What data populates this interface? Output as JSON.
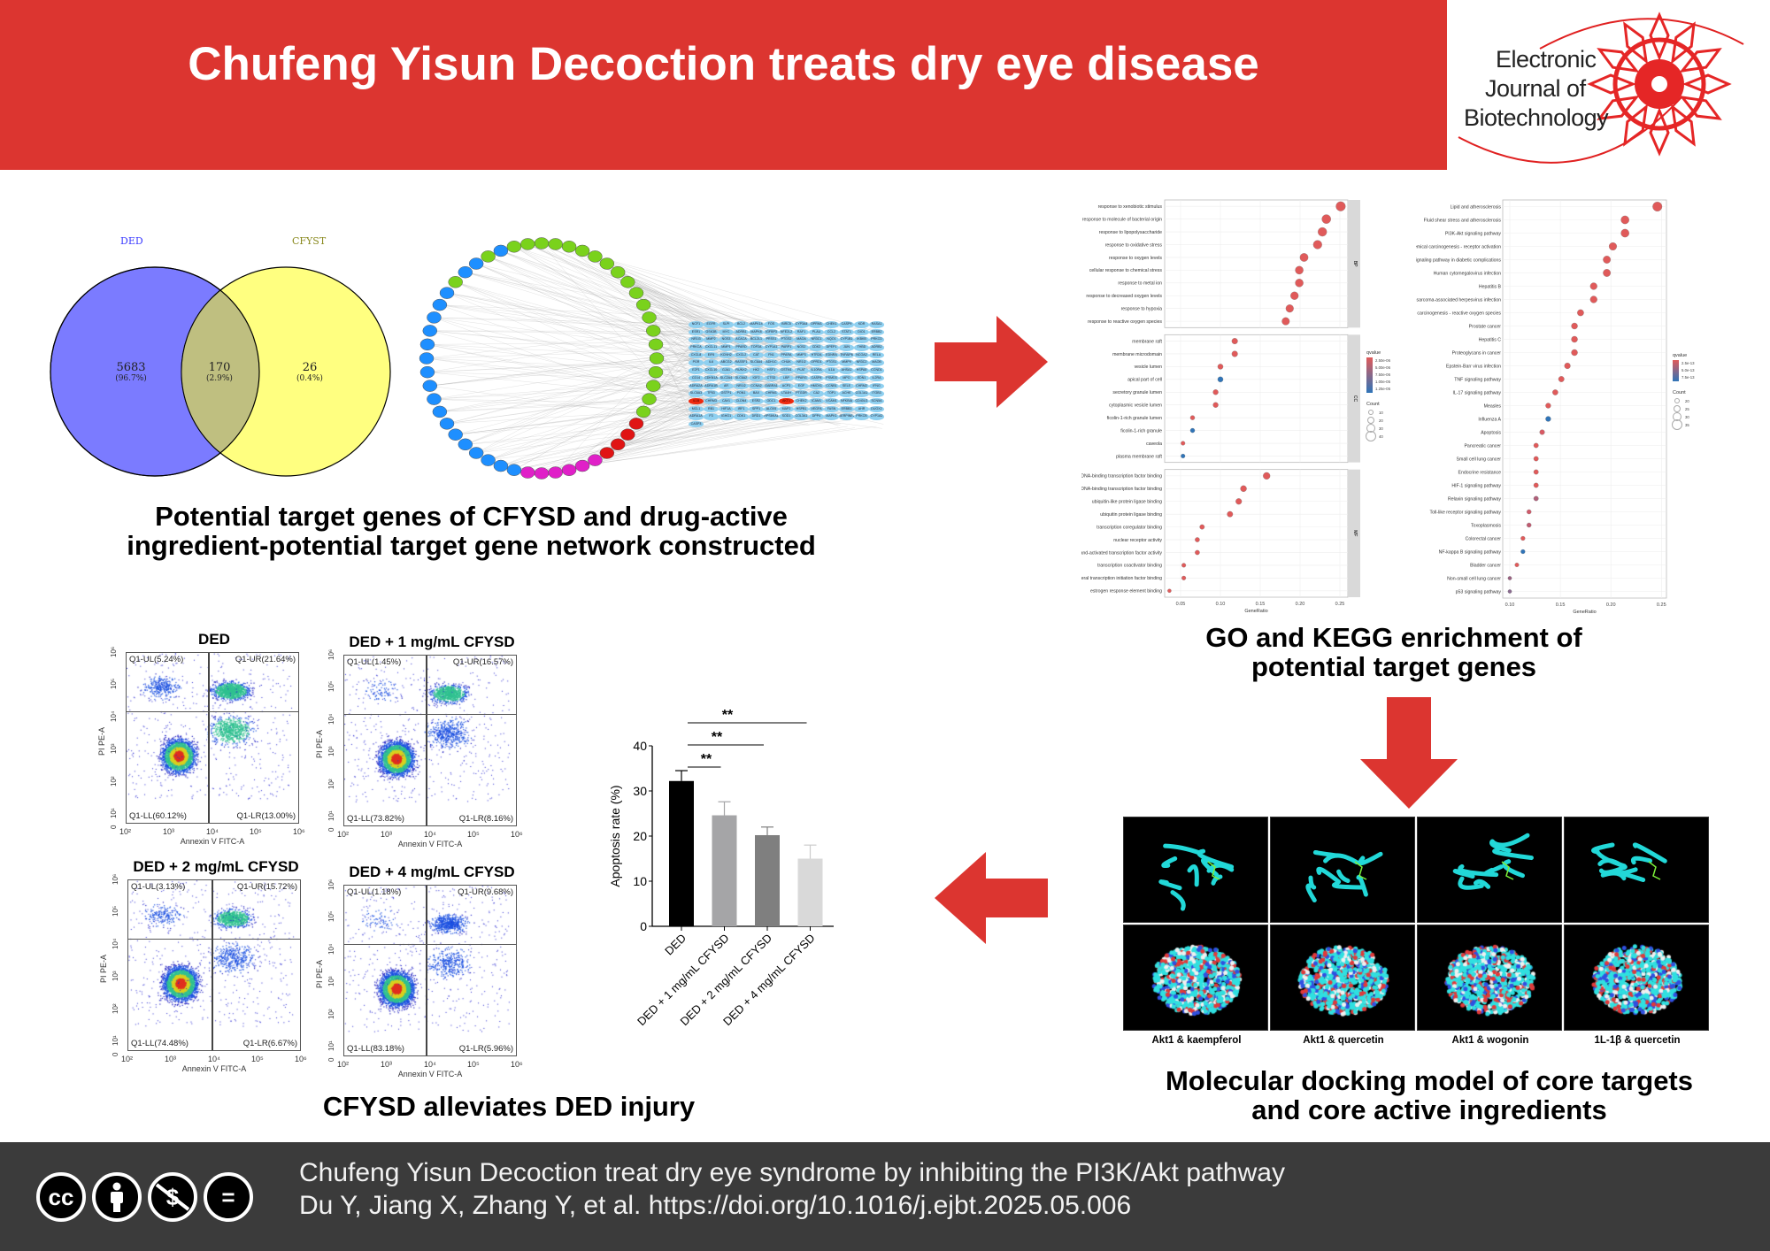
{
  "header": {
    "title": "Chufeng Yisun Decoction treats dry eye disease",
    "background_color": "#dc3530"
  },
  "logo": {
    "line1": "Electronic",
    "line2": "Journal of",
    "line3": "Biotechnology"
  },
  "venn": {
    "set_a": {
      "label": "DED",
      "color": "#7b7bff"
    },
    "set_b": {
      "label": "CFYST",
      "color": "#ffff80"
    },
    "only_a": {
      "count": "5683",
      "pct": "(96.7%)"
    },
    "both": {
      "count": "170",
      "pct": "(2.9%)"
    },
    "only_b": {
      "count": "26",
      "pct": "(0.4%)"
    }
  },
  "network": {
    "genes": [
      "NCF1",
      "EGFR",
      "SLPI",
      "BCL2",
      "MAPK14",
      "FOS",
      "BIRC5",
      "CYP3A4",
      "OPRM1",
      "CHEK1",
      "CASP9",
      "KDR",
      "RASA1",
      "ESR1",
      "GSK3B",
      "MYC",
      "ADRB1",
      "MAPK8",
      "IGFBP3",
      "NFE2L2",
      "RAF1",
      "PLAU",
      "CCL2",
      "STAT1",
      "DIO1",
      "ERBB2",
      "NR1I3",
      "MMP2",
      "NOS3",
      "ACACA",
      "BCL2L1",
      "PRSS1",
      "PTGS2",
      "MAOA",
      "NR3C1",
      "NQO1",
      "CYP1B1",
      "IKBKB",
      "PRKCD",
      "PRKCA",
      "CXCL11",
      "MMP1",
      "PPARD",
      "TOP2A",
      "CYP1A1",
      "PARP1",
      "NOS2",
      "CDK2",
      "DPEP1",
      "JUN",
      "THBD",
      "ADRB2",
      "CXCL8",
      "EIF6",
      "KCNH2",
      "CXCL2",
      "CAT",
      "FN1",
      "PPARA",
      "MMP3",
      "HTR2A",
      "EDNRA",
      "TNFAIP6",
      "NCOA2",
      "RELA",
      "PGR",
      "IL6",
      "ABCG2",
      "RASSF1",
      "SLC6A4",
      "ADH1C",
      "CHUK",
      "NR1I2",
      "OPRD1",
      "PTGS1",
      "MMP9",
      "NR3C2",
      "MAOB",
      "E2F1",
      "CXCL10",
      "GJA1",
      "RUNX2",
      "HK2",
      "HSF1",
      "GSTM1",
      "PLAT",
      "IL10RA",
      "IL1A",
      "AHSA1",
      "HSPA5",
      "CCND1",
      "CD14",
      "CDKN1A",
      "SLC2A4",
      "SLC6A2",
      "IGF2",
      "CTSD",
      "LBP",
      "PPARG",
      "CASP8",
      "PSMD3",
      "MPO",
      "EDN1",
      "IL2RA",
      "ADRA2A",
      "ADRA1B",
      "AR",
      "NR1I2",
      "CCNA2",
      "GABRA1",
      "ACP3",
      "EGF",
      "HMOX1",
      "CCNB1",
      "SELE",
      "CHRM2",
      "IFNG",
      "SLC6A3",
      "TP53",
      "GSTP1",
      "PON1",
      "BAX",
      "CHRM1",
      "LTA4H",
      "PTGDR",
      "CA2",
      "TOP1",
      "ACHE",
      "COL1A1",
      "ITGB3",
      "IL1B",
      "CHRM3",
      "CAV1",
      "CLDN4",
      "ESR2",
      "ODC1",
      "AKT1",
      "CHEK2",
      "ICAM1",
      "VCAM1",
      "NFKBIA",
      "CD40LG",
      "SCN5A",
      "MCL1",
      "RB1",
      "HIF1A",
      "IRF1",
      "SPP1",
      "ALOX5",
      "MAP2",
      "HSPB1",
      "VEGFA",
      "FASN",
      "ERBB3",
      "AHR",
      "DUOX2",
      "ADRA1A",
      "F3",
      "IGHG1",
      "CDK1",
      "DRD1",
      "RPS6KA1",
      "SOD1",
      "COL3A1",
      "DPP4",
      "MAPK1",
      "SERPINE1",
      "PRKCB",
      "CYP1A2",
      "CASP3"
    ],
    "highlighted_genes": [
      "IL1B",
      "AKT1"
    ],
    "gene_color": "#8fd0f0",
    "highlight_color": "#ee2a10",
    "node_colors": [
      "#1e8fff",
      "#7ad21c",
      "#e01414",
      "#e020c8"
    ]
  },
  "captions": {
    "network": [
      "Potential target genes of CFYSD and drug-active",
      "ingredient-potential target gene network constructed"
    ],
    "enrichment": [
      "GO and KEGG enrichment of",
      "potential target genes"
    ],
    "docking": [
      "Molecular docking model of core targets",
      "and core active ingredients"
    ],
    "apoptosis": "CFYSD alleviates DED injury"
  },
  "arrows": {
    "color": "#dc3530"
  },
  "chart_data": [
    {
      "type": "scatter",
      "title": "",
      "subtype": "GO dot plot",
      "xlabel": "GeneRatio",
      "xlim": [
        0.03,
        0.26
      ],
      "xticks": [
        "0.05",
        "0.10",
        "0.15",
        "0.20",
        "0.25"
      ],
      "grid": true,
      "legend_position": "right",
      "legend": {
        "color_title": "qvalue",
        "color_ticks": [
          "2.50e-06",
          "5.00e-06",
          "7.50e-06",
          "1.00e-05",
          "1.25e-05"
        ],
        "size_title": "Count",
        "size_ticks": [
          "10",
          "20",
          "30",
          "40"
        ]
      },
      "facets": [
        {
          "name": "BP",
          "terms": [
            {
              "label": "response to xenobiotic stimulus",
              "x": 0.251,
              "color": "#e05a5a"
            },
            {
              "label": "response to molecule of bacterial origin",
              "x": 0.233,
              "color": "#e05a5a"
            },
            {
              "label": "response to lipopolysaccharide",
              "x": 0.228,
              "color": "#e05a5a"
            },
            {
              "label": "response to oxidative stress",
              "x": 0.222,
              "color": "#e05a5a"
            },
            {
              "label": "response to oxygen levels",
              "x": 0.205,
              "color": "#e05a5a"
            },
            {
              "label": "cellular response to chemical stress",
              "x": 0.199,
              "color": "#e05a5a"
            },
            {
              "label": "response to metal ion",
              "x": 0.199,
              "color": "#e05a5a"
            },
            {
              "label": "response to decreased oxygen levels",
              "x": 0.193,
              "color": "#e05a5a"
            },
            {
              "label": "response to hypoxia",
              "x": 0.187,
              "color": "#e05a5a"
            },
            {
              "label": "response to reactive oxygen species",
              "x": 0.182,
              "color": "#e05a5a"
            }
          ]
        },
        {
          "name": "CC",
          "terms": [
            {
              "label": "membrane raft",
              "x": 0.118,
              "color": "#e05a5a"
            },
            {
              "label": "membrane microdomain",
              "x": 0.118,
              "color": "#e05a5a"
            },
            {
              "label": "vesicle lumen",
              "x": 0.1,
              "color": "#e05a5a"
            },
            {
              "label": "apical part of cell",
              "x": 0.1,
              "color": "#2f74b8"
            },
            {
              "label": "secretory granule lumen",
              "x": 0.094,
              "color": "#e05a5a"
            },
            {
              "label": "cytoplasmic vesicle lumen",
              "x": 0.094,
              "color": "#e05a5a"
            },
            {
              "label": "ficolin-1-rich granule lumen",
              "x": 0.065,
              "color": "#e05a5a"
            },
            {
              "label": "ficolin-1-rich granule",
              "x": 0.065,
              "color": "#2f74b8"
            },
            {
              "label": "caveola",
              "x": 0.053,
              "color": "#e05a5a"
            },
            {
              "label": "plasma membrane raft",
              "x": 0.053,
              "color": "#2f74b8"
            }
          ]
        },
        {
          "name": "MF",
          "terms": [
            {
              "label": "DNA-binding transcription factor binding",
              "x": 0.158,
              "color": "#e05a5a"
            },
            {
              "label": "RNA polymerase II-specific DNA-binding transcription factor binding",
              "x": 0.129,
              "color": "#e05a5a"
            },
            {
              "label": "ubiquitin-like protein ligase binding",
              "x": 0.123,
              "color": "#e05a5a"
            },
            {
              "label": "ubiquitin protein ligase binding",
              "x": 0.112,
              "color": "#e05a5a"
            },
            {
              "label": "transcription coregulator binding",
              "x": 0.077,
              "color": "#e05a5a"
            },
            {
              "label": "nuclear receptor activity",
              "x": 0.071,
              "color": "#e05a5a"
            },
            {
              "label": "ligand-activated transcription factor activity",
              "x": 0.071,
              "color": "#e05a5a"
            },
            {
              "label": "transcription coactivator binding",
              "x": 0.054,
              "color": "#e05a5a"
            },
            {
              "label": "general transcription initiation factor binding",
              "x": 0.054,
              "color": "#e05a5a"
            },
            {
              "label": "estrogen response element binding",
              "x": 0.036,
              "color": "#e05a5a"
            }
          ]
        }
      ]
    },
    {
      "type": "scatter",
      "title": "",
      "subtype": "KEGG dot plot",
      "xlabel": "GeneRatio",
      "xlim": [
        0.093,
        0.255
      ],
      "xticks": [
        "0.10",
        "0.15",
        "0.20",
        "0.25"
      ],
      "grid": true,
      "legend_position": "right",
      "legend": {
        "color_title": "qvalue",
        "color_ticks": [
          "2.5e-13",
          "5.0e-13",
          "7.5e-13"
        ],
        "size_title": "Count",
        "size_ticks": [
          "20",
          "25",
          "30",
          "35"
        ]
      },
      "terms": [
        {
          "label": "Lipid and atherosclerosis",
          "x": 0.246,
          "color": "#e05a5a"
        },
        {
          "label": "Fluid shear stress and atherosclerosis",
          "x": 0.214,
          "color": "#e05a5a"
        },
        {
          "label": "PI3K-Akt signaling pathway",
          "x": 0.214,
          "color": "#e05a5a"
        },
        {
          "label": "Chemical carcinogenesis - receptor activation",
          "x": 0.202,
          "color": "#e05a5a"
        },
        {
          "label": "AGE-RAGE signaling pathway in diabetic complications",
          "x": 0.196,
          "color": "#e05a5a"
        },
        {
          "label": "Human cytomegalovirus infection",
          "x": 0.196,
          "color": "#e05a5a"
        },
        {
          "label": "Hepatitis B",
          "x": 0.183,
          "color": "#e05a5a"
        },
        {
          "label": "Kaposi sarcoma-associated herpesvirus infection",
          "x": 0.183,
          "color": "#e05a5a"
        },
        {
          "label": "Chemical carcinogenesis - reactive oxygen species",
          "x": 0.17,
          "color": "#e05a5a"
        },
        {
          "label": "Prostate cancer",
          "x": 0.164,
          "color": "#e05a5a"
        },
        {
          "label": "Hepatitis C",
          "x": 0.164,
          "color": "#e05a5a"
        },
        {
          "label": "Proteoglycans in cancer",
          "x": 0.164,
          "color": "#e05a5a"
        },
        {
          "label": "Epstein-Barr virus infection",
          "x": 0.157,
          "color": "#e05a5a"
        },
        {
          "label": "TNF signaling pathway",
          "x": 0.151,
          "color": "#e05a5a"
        },
        {
          "label": "IL-17 signaling pathway",
          "x": 0.145,
          "color": "#e05a5a"
        },
        {
          "label": "Measles",
          "x": 0.138,
          "color": "#e05a5a"
        },
        {
          "label": "Influenza A",
          "x": 0.138,
          "color": "#2f74b8"
        },
        {
          "label": "Apoptosis",
          "x": 0.132,
          "color": "#d85a64"
        },
        {
          "label": "Pancreatic cancer",
          "x": 0.126,
          "color": "#e05a5a"
        },
        {
          "label": "Small cell lung cancer",
          "x": 0.126,
          "color": "#e05a5a"
        },
        {
          "label": "Endocrine resistance",
          "x": 0.126,
          "color": "#e05a5a"
        },
        {
          "label": "HIF-1 signaling pathway",
          "x": 0.126,
          "color": "#e05a5a"
        },
        {
          "label": "Relaxin signaling pathway",
          "x": 0.126,
          "color": "#b0607a"
        },
        {
          "label": "Toll-like receptor signaling pathway",
          "x": 0.119,
          "color": "#d05a6a"
        },
        {
          "label": "Toxoplasmosis",
          "x": 0.119,
          "color": "#c05a70"
        },
        {
          "label": "Colorectal cancer",
          "x": 0.113,
          "color": "#e05a5a"
        },
        {
          "label": "NF-kappa B signaling pathway",
          "x": 0.113,
          "color": "#2f74b8"
        },
        {
          "label": "Bladder cancer",
          "x": 0.107,
          "color": "#e05a5a"
        },
        {
          "label": "Non-small cell lung cancer",
          "x": 0.1,
          "color": "#9a6080"
        },
        {
          "label": "p53 signaling pathway",
          "x": 0.1,
          "color": "#8a6a90"
        }
      ]
    },
    {
      "type": "bar",
      "title": "",
      "categories": [
        "DED",
        "DED + 1 mg/mL CFYSD",
        "DED + 2 mg/mL CFYSD",
        "DED + 4 mg/mL CFYSD"
      ],
      "values": [
        32.2,
        24.6,
        20.2,
        15.0
      ],
      "errors": [
        2.3,
        3.0,
        1.8,
        3.0
      ],
      "colors": [
        "#000000",
        "#a5a5a7",
        "#7f7f7f",
        "#d9d9d9"
      ],
      "ylabel": "Apoptosis rate (%)",
      "ylim": [
        0,
        40
      ],
      "yticks": [
        "0",
        "10",
        "20",
        "30",
        "40"
      ],
      "significance": [
        {
          "from": "DED",
          "to": "DED + 1 mg/mL CFYSD",
          "label": "**"
        },
        {
          "from": "DED",
          "to": "DED + 2 mg/mL CFYSD",
          "label": "**"
        },
        {
          "from": "DED",
          "to": "DED + 4 mg/mL CFYSD",
          "label": "**"
        }
      ]
    }
  ],
  "flow": {
    "xlabel": "Annexin V FITC-A",
    "ylabel": "PI PE-A",
    "xticks": [
      "10²",
      "10³",
      "10⁴",
      "10⁵",
      "10⁶"
    ],
    "yticks": [
      "0",
      "10¹",
      "10²",
      "10³",
      "10⁴",
      "10⁵",
      "10⁶"
    ],
    "panels": [
      {
        "title": "DED",
        "ul": "Q1-UL(5.24%)",
        "ur": "Q1-UR(21.64%)",
        "ll": "Q1-LL(60.12%)",
        "lr": "Q1-LR(13.00%)"
      },
      {
        "title": "DED + 1 mg/mL CFYSD",
        "ul": "Q1-UL(1.45%)",
        "ur": "Q1-UR(16.57%)",
        "ll": "Q1-LL(73.82%)",
        "lr": "Q1-LR(8.16%)"
      },
      {
        "title": "DED + 2 mg/mL CFYSD",
        "ul": "Q1-UL(3.13%)",
        "ur": "Q1-UR(15.72%)",
        "ll": "Q1-LL(74.48%)",
        "lr": "Q1-LR(6.67%)"
      },
      {
        "title": "DED + 4 mg/mL CFYSD",
        "ul": "Q1-UL(1.18%)",
        "ur": "Q1-UR(9.68%)",
        "ll": "Q1-LL(83.18%)",
        "lr": "Q1-LR(5.96%)"
      }
    ]
  },
  "docking": {
    "labels": [
      "Akt1 & kaempferol",
      "Akt1 & quercetin",
      "Akt1 & wogonin",
      "1L-1β & quercetin"
    ]
  },
  "footer": {
    "license_icons": [
      "cc-icon",
      "attribution-icon",
      "noncommercial-icon",
      "noderivatives-icon"
    ],
    "license_glyphs": [
      "cc",
      "",
      "$",
      "="
    ],
    "line1": "Chufeng Yisun Decoction treat dry eye syndrome by inhibiting the PI3K/Akt pathway",
    "line2": "Du Y, Jiang X, Zhang Y, et al. https://doi.org/10.1016/j.ejbt.2025.05.006"
  }
}
